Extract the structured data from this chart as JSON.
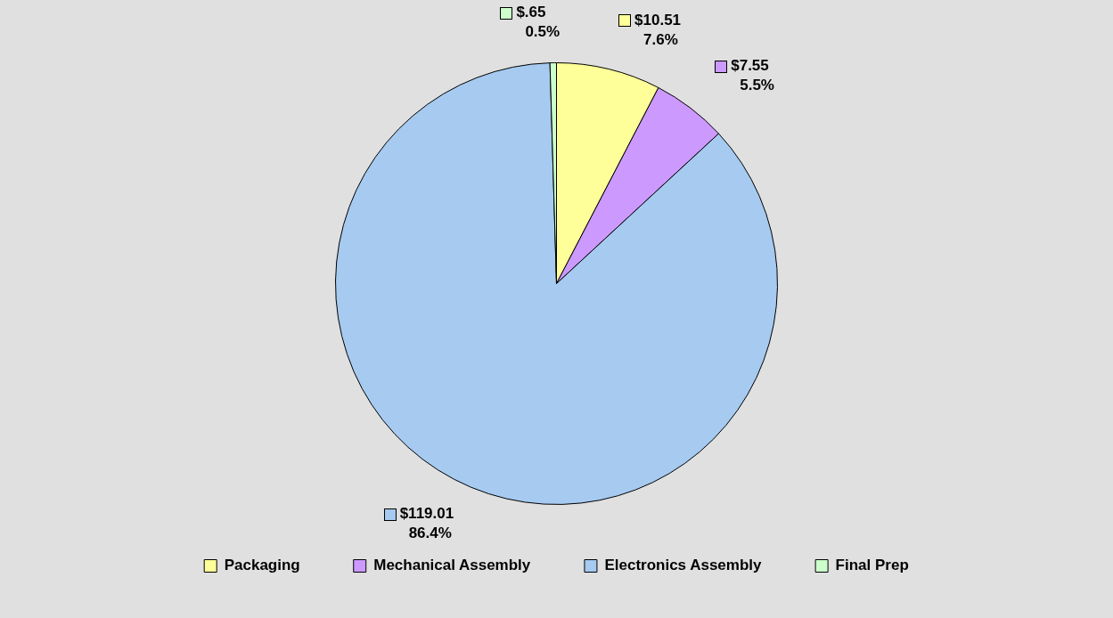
{
  "chart_data": {
    "type": "pie",
    "categories": [
      "Packaging",
      "Mechanical Assembly",
      "Electronics Assembly",
      "Final Prep"
    ],
    "values": [
      10.51,
      7.55,
      119.01,
      0.65
    ],
    "colors": [
      "#ffff99",
      "#cc99ff",
      "#a6caf0",
      "#ccffcc"
    ],
    "value_labels": [
      "$10.51\n7.6%",
      "$7.55\n5.5%",
      "$119.01\n86.4%",
      "$.65\n0.5%"
    ],
    "legend": "bottom"
  }
}
